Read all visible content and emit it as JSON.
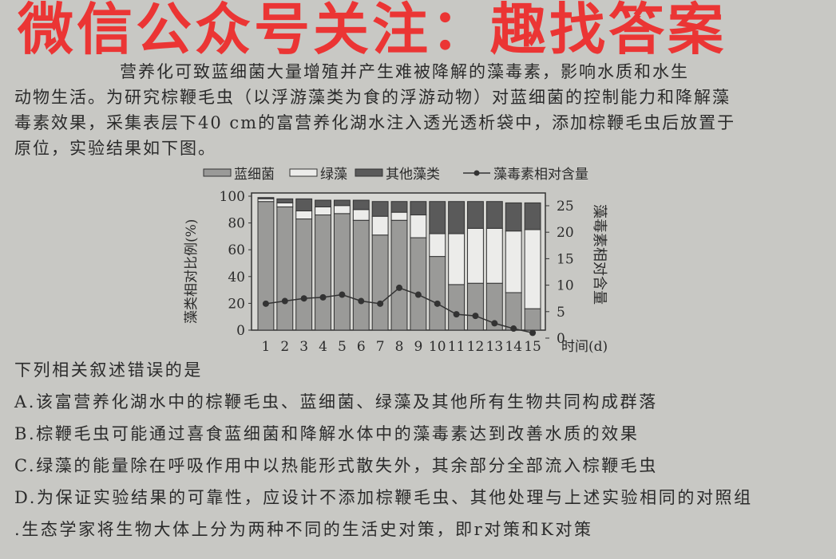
{
  "passage": {
    "lines": [
      "营养化可致蓝细菌大量增殖并产生难被降解的藻毒素，影响水质和水生",
      "动物生活。为研究棕鞭毛虫（以浮游藻类为食的浮游动物）对蓝细菌的控制能力和降解藻",
      "毒素效果，采集表层下40 cm的富营养化湖水注入透光透析袋中，添加棕鞭毛虫后放置于",
      "原位，实验结果如下图。"
    ]
  },
  "watermark": "微信公众号关注：趣找答案",
  "chart_data": {
    "type": "bar",
    "stacked": true,
    "legend": [
      "蓝细菌",
      "绿藻",
      "其他藻类",
      "藻毒素相对含量"
    ],
    "legend_placement": "top",
    "categories": [
      "1",
      "2",
      "3",
      "4",
      "5",
      "6",
      "7",
      "8",
      "9",
      "10",
      "11",
      "12",
      "13",
      "14",
      "15"
    ],
    "xlabel": "时间(d)",
    "ylabel": "藻类相对比例(%)",
    "y2label": "藻毒素相对含量",
    "ylim": [
      0,
      100
    ],
    "y2lim": [
      0,
      25
    ],
    "yticks": [
      "0",
      "20",
      "40",
      "60",
      "80",
      "100"
    ],
    "y2ticks": [
      "0",
      "5",
      "10",
      "15",
      "20",
      "25"
    ],
    "series": [
      {
        "name": "蓝细菌",
        "type": "bar",
        "color": "#9a9a98",
        "values": [
          96,
          92,
          83,
          86,
          87,
          82,
          71,
          82,
          69,
          55,
          34,
          35,
          35,
          28,
          16
        ]
      },
      {
        "name": "绿藻",
        "type": "bar",
        "color": "#ececea",
        "values": [
          2,
          3,
          6,
          6,
          6,
          8,
          14,
          6,
          17,
          17,
          38,
          41,
          41,
          46,
          59
        ]
      },
      {
        "name": "其他藻类",
        "type": "bar",
        "color": "#5a5a5a",
        "values": [
          1,
          3,
          9,
          5,
          4,
          7,
          11,
          8,
          10,
          24,
          24,
          20,
          20,
          21,
          20
        ]
      },
      {
        "name": "藻毒素相对含量",
        "type": "line",
        "axis": "right",
        "color": "#333333",
        "values": [
          6.5,
          7,
          7.5,
          7.7,
          8.2,
          7,
          6.5,
          9.5,
          8.2,
          6.5,
          4.5,
          4.2,
          2.8,
          1.8,
          1.0
        ]
      }
    ]
  },
  "question": {
    "stem": "下列相关叙述错误的是",
    "options": [
      "A.该富营养化湖水中的棕鞭毛虫、蓝细菌、绿藻及其他所有生物共同构成群落",
      "B.棕鞭毛虫可能通过喜食蓝细菌和降解水体中的藻毒素达到改善水质的效果",
      "C.绿藻的能量除在呼吸作用中以热能形式散失外，其余部分全部流入棕鞭毛虫",
      "D.为保证实验结果的可靠性，应设计不添加棕鞭毛虫、其他处理与上述实验相同的对照组"
    ],
    "next_line": ".生态学家将生物大体上分为两种不同的生活史对策，即r对策和K对策"
  }
}
